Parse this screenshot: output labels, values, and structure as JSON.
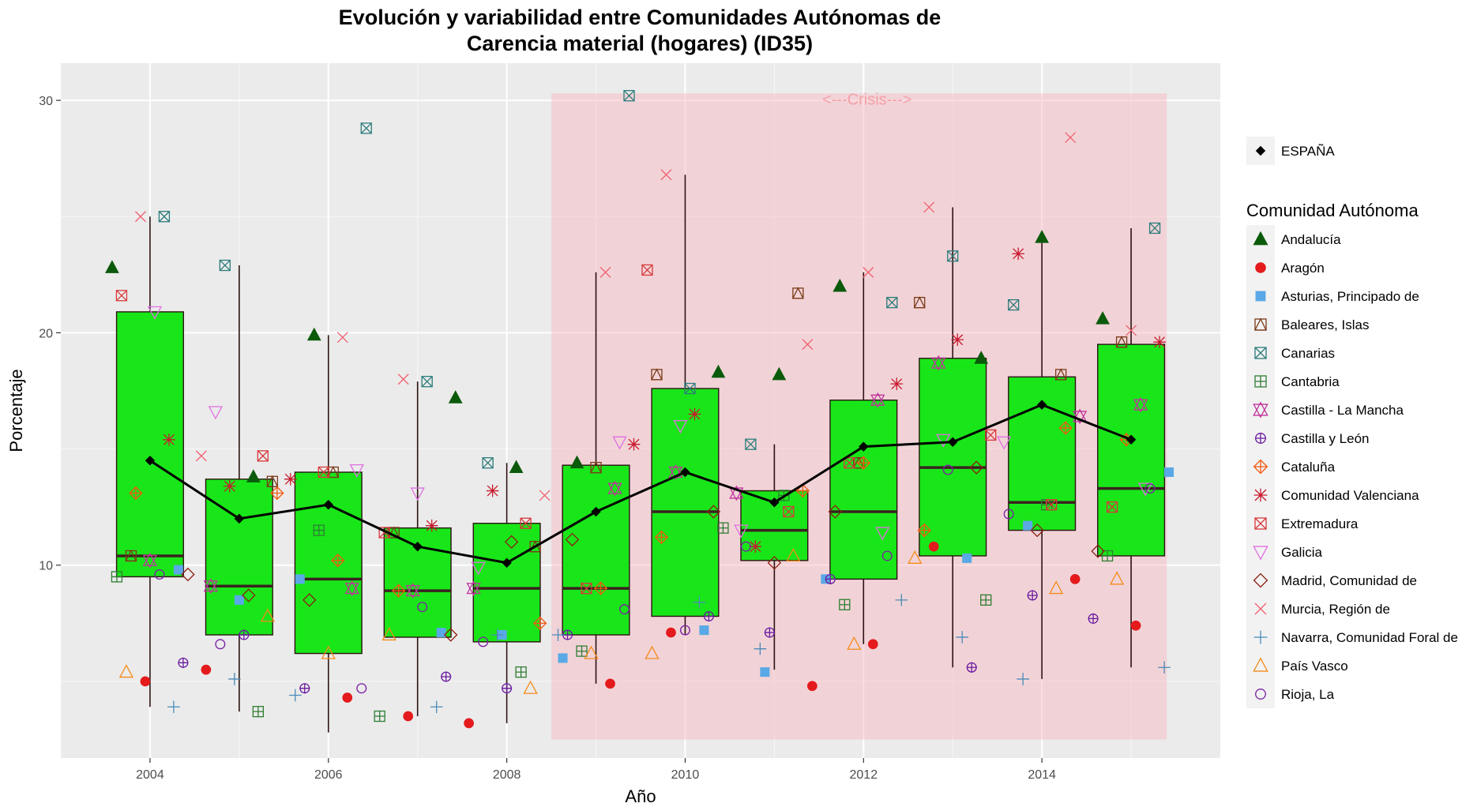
{
  "chart_data": {
    "type": "boxplot",
    "title": [
      "Evolución y variabilidad entre Comunidades Autónomas de",
      "Carencia material (hogares) (ID35)"
    ],
    "xlabel": "Año",
    "ylabel": "Porcentaje",
    "xlim": [
      2003.0,
      2016.0
    ],
    "ylim": [
      1.7,
      31.6
    ],
    "x_ticks": [
      2004,
      2006,
      2008,
      2010,
      2012,
      2014
    ],
    "y_ticks": [
      10,
      20,
      30
    ],
    "grid": true,
    "legend_position": "right",
    "annotation": {
      "label": "<---Crisis--->",
      "x_range": [
        2008.5,
        2015.4
      ],
      "y_range": [
        2.5,
        30.3
      ],
      "color": "#f4a0a8"
    },
    "box_color": "#19e619",
    "line_color": "#000000",
    "years": [
      2004,
      2005,
      2006,
      2007,
      2008,
      2009,
      2010,
      2011,
      2012,
      2013,
      2014,
      2015
    ],
    "boxes": [
      {
        "year": 2004,
        "min": 3.9,
        "q1": 9.5,
        "median": 10.4,
        "q3": 20.9,
        "max": 25.0
      },
      {
        "year": 2005,
        "min": 3.7,
        "q1": 7.0,
        "median": 9.1,
        "q3": 13.7,
        "max": 22.9
      },
      {
        "year": 2006,
        "min": 2.8,
        "q1": 6.2,
        "median": 9.4,
        "q3": 14.0,
        "max": 19.9
      },
      {
        "year": 2007,
        "min": 3.5,
        "q1": 6.9,
        "median": 8.9,
        "q3": 11.6,
        "max": 17.9
      },
      {
        "year": 2008,
        "min": 3.2,
        "q1": 6.7,
        "median": 9.0,
        "q3": 11.8,
        "max": 14.4
      },
      {
        "year": 2009,
        "min": 4.9,
        "q1": 7.0,
        "median": 9.0,
        "q3": 14.3,
        "max": 22.6
      },
      {
        "year": 2010,
        "min": 7.0,
        "q1": 7.8,
        "median": 12.3,
        "q3": 17.6,
        "max": 26.8
      },
      {
        "year": 2011,
        "min": 5.5,
        "q1": 10.2,
        "median": 11.5,
        "q3": 13.2,
        "max": 15.2
      },
      {
        "year": 2012,
        "min": 6.6,
        "q1": 9.4,
        "median": 12.3,
        "q3": 17.1,
        "max": 22.6
      },
      {
        "year": 2013,
        "min": 5.6,
        "q1": 10.4,
        "median": 14.2,
        "q3": 18.9,
        "max": 25.4
      },
      {
        "year": 2014,
        "min": 5.1,
        "q1": 11.5,
        "median": 12.7,
        "q3": 18.1,
        "max": 24.1
      },
      {
        "year": 2015,
        "min": 5.6,
        "q1": 10.4,
        "median": 13.3,
        "q3": 19.5,
        "max": 24.5
      }
    ],
    "espana": [
      {
        "year": 2004,
        "value": 14.5
      },
      {
        "year": 2005,
        "value": 12.0
      },
      {
        "year": 2006,
        "value": 12.6
      },
      {
        "year": 2007,
        "value": 10.8
      },
      {
        "year": 2008,
        "value": 10.1
      },
      {
        "year": 2009,
        "value": 12.3
      },
      {
        "year": 2010,
        "value": 14.0
      },
      {
        "year": 2011,
        "value": 12.7
      },
      {
        "year": 2012,
        "value": 15.1
      },
      {
        "year": 2013,
        "value": 15.3
      },
      {
        "year": 2014,
        "value": 16.9
      },
      {
        "year": 2015,
        "value": 15.4
      }
    ],
    "legend": {
      "espana_label": "ESPAÑA",
      "title": "Comunidad Autónoma",
      "entries": [
        {
          "name": "Andalucía",
          "shape": "triangle-filled",
          "color": "#0b5a0b"
        },
        {
          "name": "Aragón",
          "shape": "circle-filled",
          "color": "#e41a1c"
        },
        {
          "name": "Asturias, Principado de",
          "shape": "square-filled",
          "color": "#5aa8e6"
        },
        {
          "name": "Baleares, Islas",
          "shape": "square-tri",
          "color": "#7b3a18"
        },
        {
          "name": "Canarias",
          "shape": "square-x",
          "color": "#2b7b7b"
        },
        {
          "name": "Cantabria",
          "shape": "square-plus",
          "color": "#2e7d32"
        },
        {
          "name": "Castilla - La Mancha",
          "shape": "star6",
          "color": "#c0359c"
        },
        {
          "name": "Castilla y León",
          "shape": "circle-plus",
          "color": "#6a1aa0"
        },
        {
          "name": "Cataluña",
          "shape": "diamond-plus",
          "color": "#f05a12"
        },
        {
          "name": "Comunidad Valenciana",
          "shape": "asterisk",
          "color": "#c8182b"
        },
        {
          "name": "Extremadura",
          "shape": "square-x",
          "color": "#d8383a"
        },
        {
          "name": "Galicia",
          "shape": "triangle-down",
          "color": "#e070e0"
        },
        {
          "name": "Madrid, Comunidad de",
          "shape": "diamond",
          "color": "#8a1f10"
        },
        {
          "name": "Murcia, Región de",
          "shape": "x",
          "color": "#f06070"
        },
        {
          "name": "Navarra, Comunidad Foral de",
          "shape": "plus",
          "color": "#4a8ab8"
        },
        {
          "name": "País Vasco",
          "shape": "triangle",
          "color": "#f58a18"
        },
        {
          "name": "Rioja, La",
          "shape": "circle",
          "color": "#7a1fa2"
        }
      ]
    },
    "points": [
      {
        "region": "Andalucía",
        "values": [
          22.8,
          13.8,
          19.9,
          17.2,
          14.2,
          14.4,
          18.3,
          18.2,
          22.0,
          18.9,
          24.1,
          20.6
        ]
      },
      {
        "region": "Aragón",
        "values": [
          5.0,
          5.5,
          4.3,
          3.5,
          3.2,
          4.9,
          7.1,
          4.8,
          6.6,
          10.8,
          9.4,
          7.4
        ]
      },
      {
        "region": "Asturias, Principado de",
        "values": [
          9.8,
          8.5,
          9.4,
          7.1,
          7.0,
          6.0,
          7.2,
          5.4,
          9.4,
          10.3,
          11.7,
          14.0
        ]
      },
      {
        "region": "Baleares, Islas",
        "values": [
          10.4,
          13.6,
          14.0,
          11.4,
          10.8,
          14.2,
          18.2,
          21.7,
          14.4,
          21.3,
          18.2,
          19.6
        ]
      },
      {
        "region": "Canarias",
        "values": [
          25.0,
          22.9,
          28.8,
          17.9,
          14.4,
          30.2,
          17.6,
          15.2,
          21.3,
          23.3,
          21.2,
          24.5
        ]
      },
      {
        "region": "Cantabria",
        "values": [
          9.5,
          3.7,
          11.5,
          3.5,
          5.4,
          6.3,
          11.6,
          13.0,
          8.3,
          8.5,
          12.6,
          10.4
        ]
      },
      {
        "region": "Castilla - La Mancha",
        "values": [
          10.2,
          9.1,
          9.0,
          8.9,
          9.0,
          13.3,
          14.0,
          13.1,
          17.1,
          18.7,
          16.4,
          16.9
        ]
      },
      {
        "region": "Castilla y León",
        "values": [
          5.8,
          7.0,
          4.7,
          5.2,
          4.7,
          7.0,
          7.8,
          7.1,
          9.4,
          5.6,
          8.7,
          7.7
        ]
      },
      {
        "region": "Cataluña",
        "values": [
          13.1,
          13.1,
          10.2,
          8.9,
          7.5,
          9.0,
          11.2,
          13.2,
          14.4,
          11.5,
          15.9,
          15.4
        ]
      },
      {
        "region": "Comunidad Valenciana",
        "values": [
          15.4,
          13.4,
          13.7,
          11.7,
          13.2,
          15.2,
          16.5,
          10.8,
          17.8,
          19.7,
          23.4,
          19.6
        ]
      },
      {
        "region": "Extremadura",
        "values": [
          21.6,
          14.7,
          14.0,
          11.4,
          11.8,
          9.0,
          22.7,
          12.3,
          14.4,
          15.6,
          12.6,
          12.5
        ]
      },
      {
        "region": "Galicia",
        "values": [
          20.9,
          16.6,
          14.1,
          13.1,
          9.9,
          15.3,
          16.0,
          11.5,
          11.4,
          15.4,
          15.3,
          13.3
        ]
      },
      {
        "region": "Madrid, Comunidad de",
        "values": [
          9.6,
          8.7,
          8.5,
          7.0,
          11.0,
          11.1,
          12.3,
          10.1,
          12.3,
          14.2,
          11.5,
          10.6
        ]
      },
      {
        "region": "Murcia, Región de",
        "values": [
          25.0,
          14.7,
          19.8,
          18.0,
          13.0,
          22.6,
          26.8,
          19.5,
          22.6,
          25.4,
          28.4,
          20.1
        ]
      },
      {
        "region": "Navarra, Comunidad Foral de",
        "values": [
          3.9,
          5.1,
          4.4,
          3.9,
          7.0,
          7.0,
          8.4,
          6.4,
          8.5,
          6.9,
          5.1,
          5.6
        ]
      },
      {
        "region": "País Vasco",
        "values": [
          5.4,
          7.8,
          6.2,
          7.0,
          4.7,
          6.2,
          6.2,
          10.4,
          6.6,
          10.3,
          9.0,
          9.4
        ]
      },
      {
        "region": "Rioja, La",
        "values": [
          9.6,
          6.6,
          4.7,
          8.2,
          6.7,
          8.1,
          7.2,
          10.8,
          10.4,
          14.1,
          12.2,
          13.3
        ]
      }
    ]
  }
}
